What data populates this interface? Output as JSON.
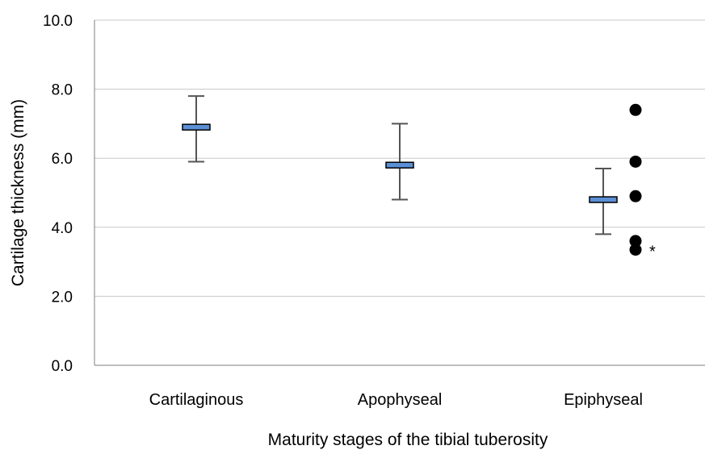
{
  "chart_data": {
    "type": "box",
    "title": "",
    "xlabel": "Maturity stages of the tibial tuberosity",
    "ylabel": "Cartilage thickness (mm)",
    "ylim": [
      0,
      10
    ],
    "yticks": [
      "0.0",
      "2.0",
      "4.0",
      "6.0",
      "8.0",
      "10.0"
    ],
    "grid": true,
    "categories": [
      "Cartilaginous",
      "Apophyseal",
      "Epiphyseal"
    ],
    "series": [
      {
        "category": "Cartilaginous",
        "median": 6.9,
        "whisker_low": 5.9,
        "whisker_high": 7.8,
        "outliers": []
      },
      {
        "category": "Apophyseal",
        "median": 5.8,
        "whisker_low": 4.8,
        "whisker_high": 7.0,
        "outliers": []
      },
      {
        "category": "Epiphyseal",
        "median": 4.8,
        "whisker_low": 3.8,
        "whisker_high": 5.7,
        "outliers": [
          7.4,
          5.9,
          4.9,
          3.6,
          3.35
        ]
      }
    ],
    "annotations": [
      {
        "text": "*",
        "category": "Epiphyseal",
        "y": 3.35
      }
    ],
    "colors": {
      "box_fill": "#5b8fd6",
      "box_stroke": "#000000",
      "whisker": "#555555",
      "outlier": "#000000",
      "grid": "#c8c8c8",
      "axis": "#7f7f7f"
    }
  }
}
